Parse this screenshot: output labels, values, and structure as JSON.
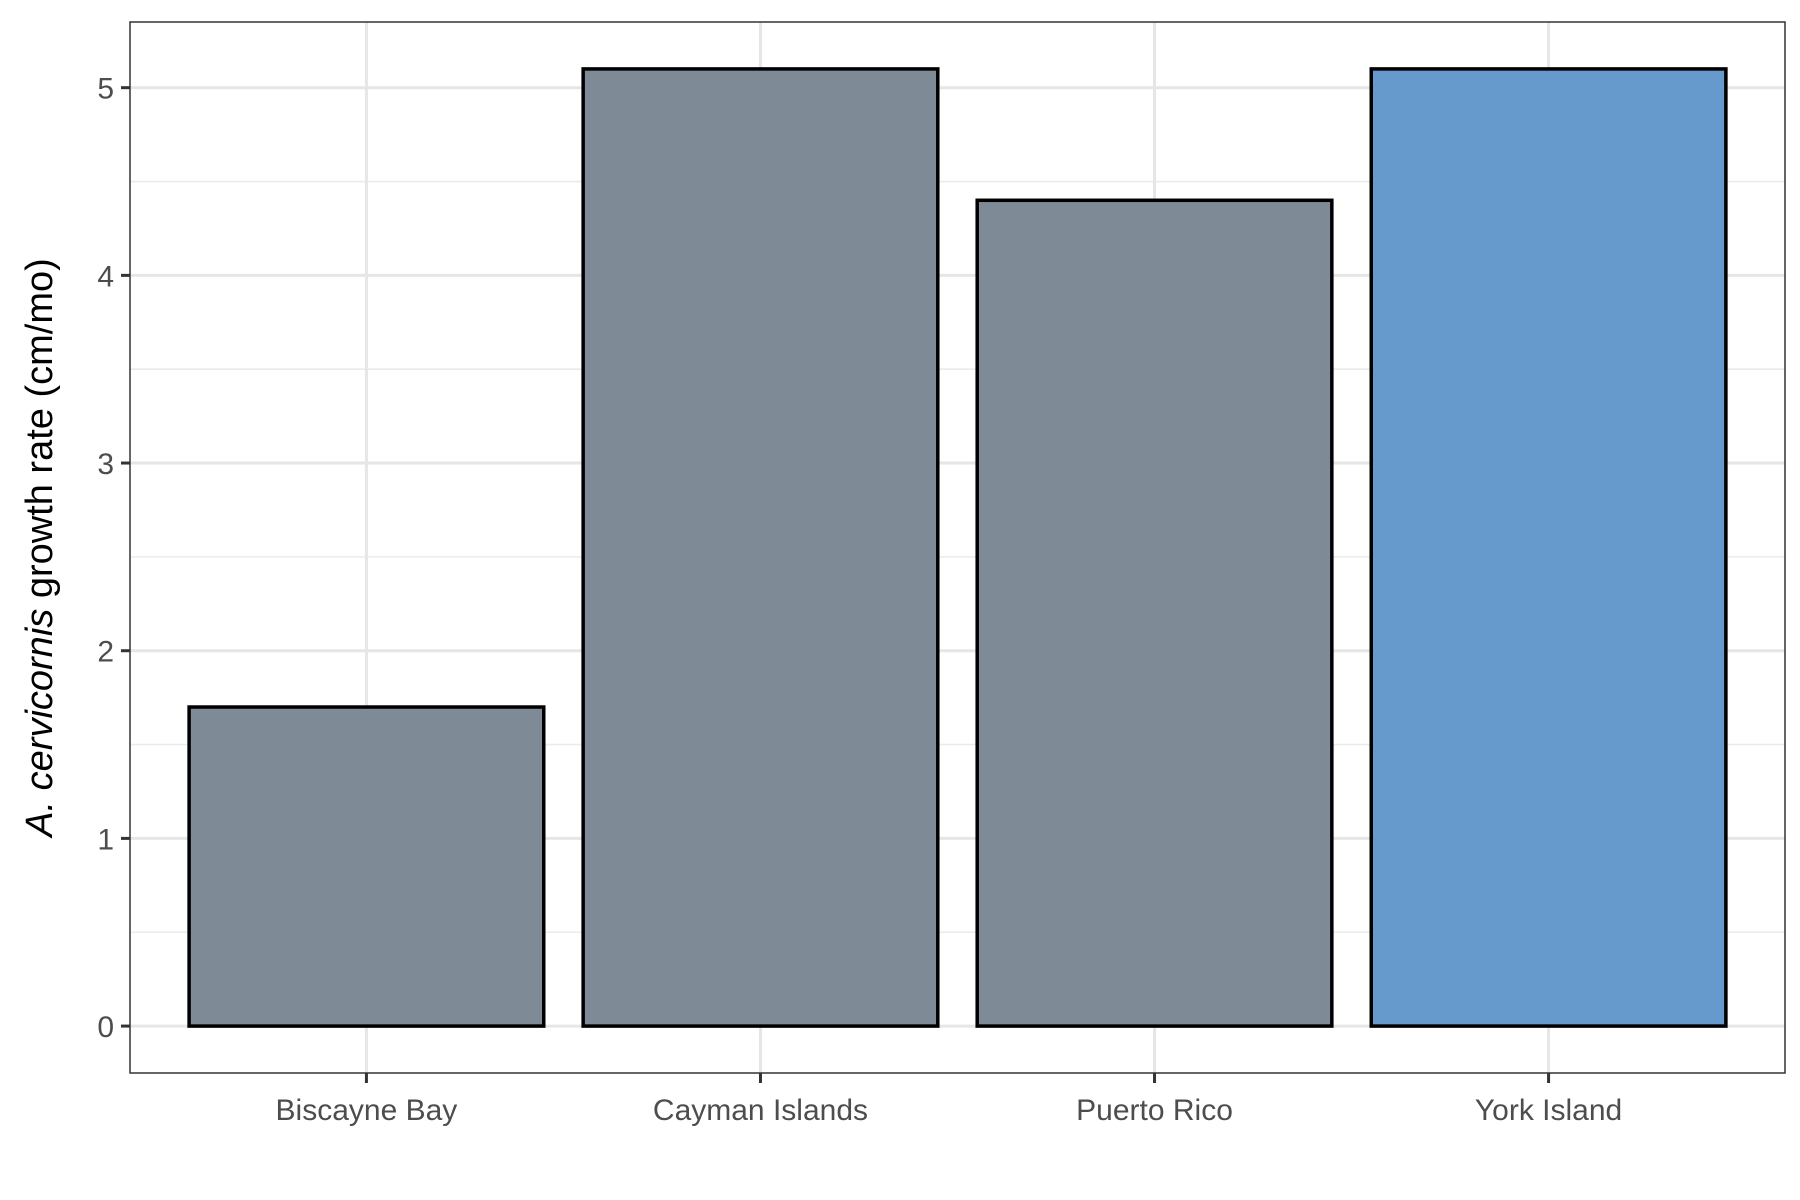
{
  "chart_data": {
    "type": "bar",
    "title": "",
    "xlabel": "",
    "ylabel": {
      "italic_part": "A. cervicornis",
      "rest": " growth rate (cm/mo)"
    },
    "categories": [
      "Biscayne Bay",
      "Cayman Islands",
      "Puerto Rico",
      "York Island"
    ],
    "values": [
      1.7,
      5.1,
      4.4,
      5.1
    ],
    "bar_colors": [
      "#7f8a97",
      "#7f8a97",
      "#7f8a97",
      "#6699cc"
    ],
    "bar_outline_color": "#000000",
    "ylim": [
      -0.25,
      5.35
    ],
    "y_ticks": [
      0,
      1,
      2,
      3,
      4,
      5
    ],
    "y_minor_ticks": [
      0.5,
      1.5,
      2.5,
      3.5,
      4.5
    ],
    "grid": true,
    "legend": "none"
  }
}
